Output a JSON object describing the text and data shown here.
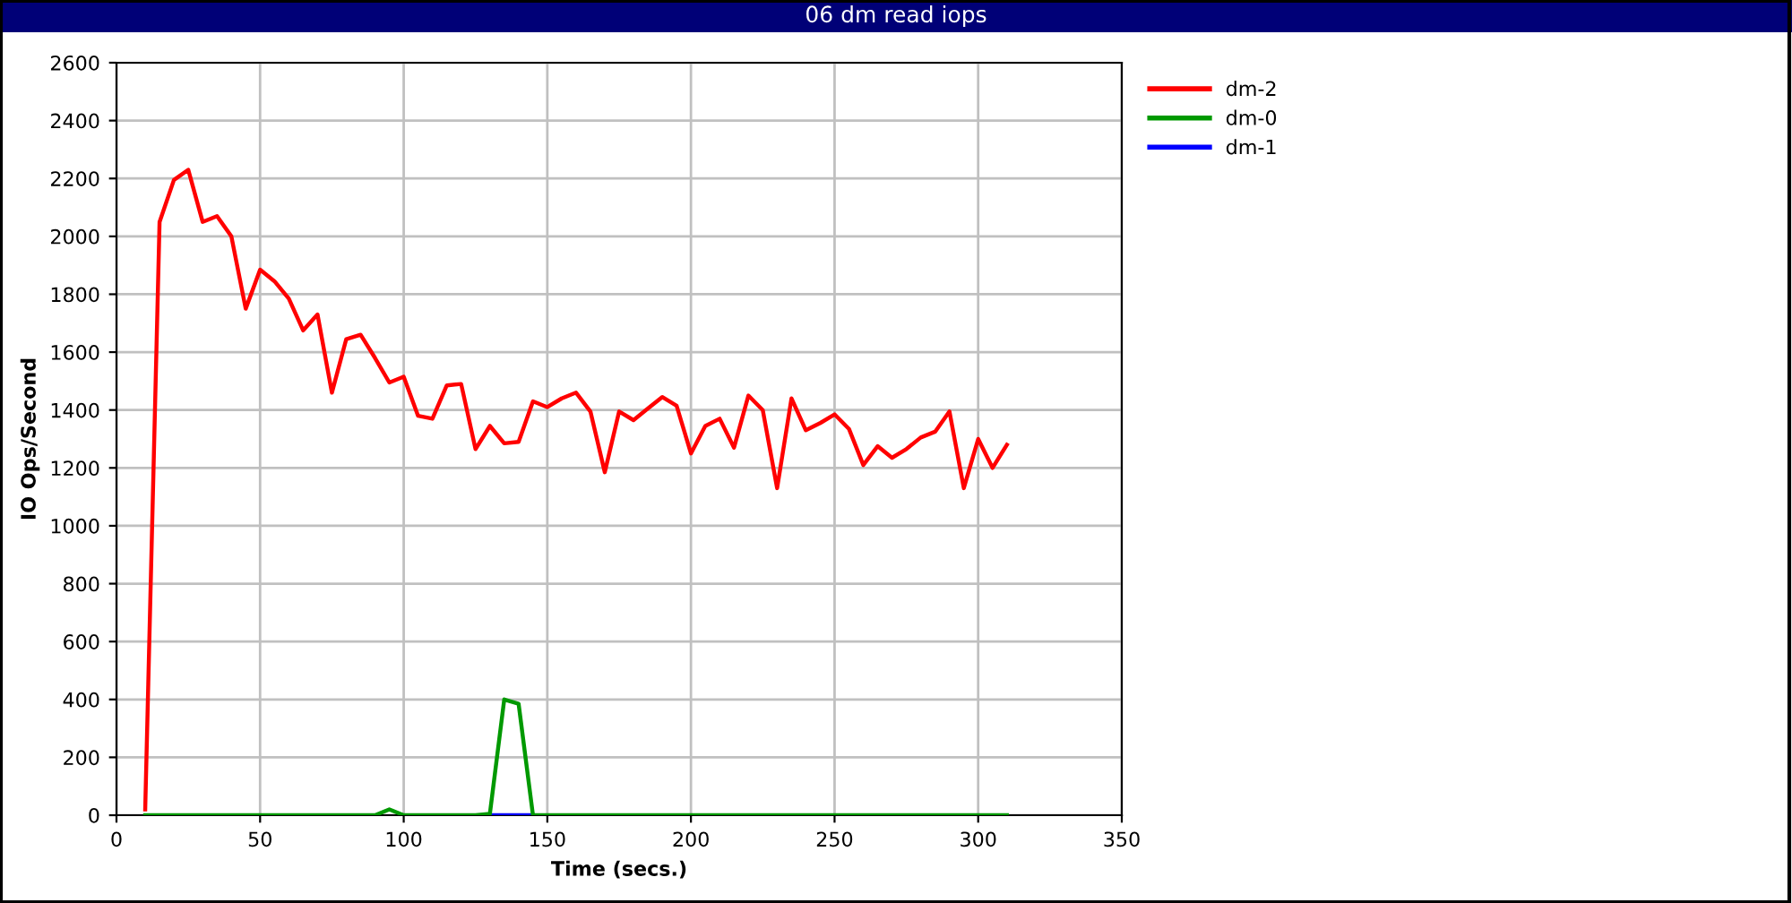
{
  "chart_data": {
    "type": "line",
    "title": "06 dm read iops",
    "xlabel": "Time (secs.)",
    "ylabel": "IO Ops/Second",
    "x": [
      10,
      15,
      20,
      25,
      30,
      35,
      40,
      45,
      50,
      55,
      60,
      65,
      70,
      75,
      80,
      85,
      90,
      95,
      100,
      105,
      110,
      115,
      120,
      125,
      130,
      135,
      140,
      145,
      150,
      155,
      160,
      165,
      170,
      175,
      180,
      185,
      190,
      195,
      200,
      205,
      210,
      215,
      220,
      225,
      230,
      235,
      240,
      245,
      250,
      255,
      260,
      265,
      270,
      275,
      280,
      285,
      290,
      295,
      300,
      305,
      310
    ],
    "series": [
      {
        "name": "dm-2",
        "color": "#ff0000",
        "values": [
          20,
          2050,
          2195,
          2230,
          2050,
          2070,
          2000,
          1750,
          1885,
          1845,
          1785,
          1675,
          1730,
          1460,
          1645,
          1660,
          1580,
          1495,
          1515,
          1380,
          1370,
          1485,
          1490,
          1265,
          1345,
          1285,
          1290,
          1430,
          1410,
          1440,
          1460,
          1395,
          1185,
          1395,
          1365,
          1405,
          1445,
          1415,
          1250,
          1345,
          1370,
          1270,
          1450,
          1400,
          1130,
          1440,
          1330,
          1355,
          1385,
          1335,
          1210,
          1275,
          1235,
          1265,
          1305,
          1325,
          1395,
          1130,
          1300,
          1200,
          1280
        ]
      },
      {
        "name": "dm-0",
        "color": "#009900",
        "values": [
          0,
          0,
          0,
          0,
          0,
          0,
          0,
          0,
          0,
          0,
          0,
          0,
          0,
          0,
          0,
          0,
          0,
          20,
          0,
          0,
          0,
          0,
          0,
          0,
          5,
          400,
          385,
          0,
          0,
          0,
          0,
          0,
          0,
          0,
          0,
          0,
          0,
          0,
          0,
          0,
          0,
          0,
          0,
          0,
          0,
          0,
          0,
          0,
          0,
          0,
          0,
          0,
          0,
          0,
          0,
          0,
          0,
          0,
          0,
          0,
          0
        ]
      },
      {
        "name": "dm-1",
        "color": "#0000ff",
        "values": [
          null,
          null,
          null,
          null,
          null,
          null,
          null,
          null,
          null,
          null,
          null,
          null,
          null,
          null,
          null,
          null,
          null,
          null,
          null,
          null,
          null,
          null,
          null,
          null,
          0,
          0,
          0,
          0,
          null,
          null,
          null,
          null,
          null,
          null,
          null,
          null,
          null,
          null,
          null,
          null,
          null,
          null,
          null,
          null,
          null,
          null,
          null,
          null,
          null,
          null,
          null,
          null,
          null,
          null,
          null,
          null,
          null,
          null,
          null,
          null,
          null
        ]
      }
    ],
    "xlim": [
      0,
      350
    ],
    "xticks": [
      0,
      50,
      100,
      150,
      200,
      250,
      300,
      350
    ],
    "ylim": [
      0,
      2600
    ],
    "yticks": [
      0,
      200,
      400,
      600,
      800,
      1000,
      1200,
      1400,
      1600,
      1800,
      2000,
      2200,
      2400,
      2600
    ],
    "grid": true,
    "legend": "top right",
    "marker": "none",
    "line_style": "solid"
  }
}
